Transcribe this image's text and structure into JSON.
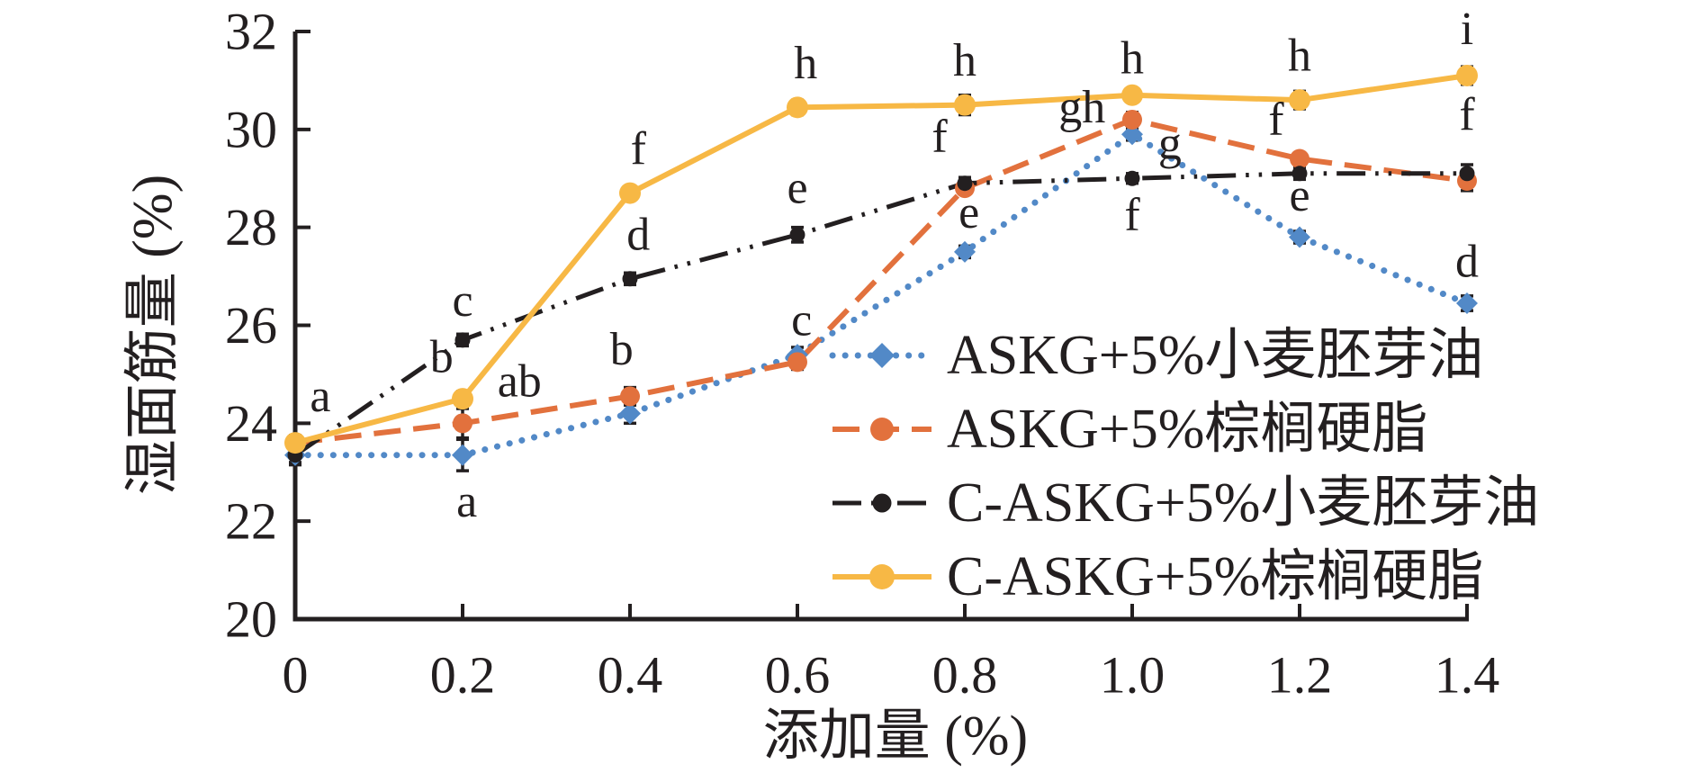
{
  "chart_data": {
    "type": "line",
    "title": "",
    "xlabel": "添加量 (%)",
    "ylabel": "湿面筋量 (%)",
    "xlim": [
      0,
      1.4
    ],
    "ylim": [
      20,
      32
    ],
    "grid": false,
    "legend_position": "center-right",
    "axis_color": "#231f20",
    "x": [
      0,
      0.2,
      0.4,
      0.6,
      0.8,
      1.0,
      1.2,
      1.4
    ],
    "x_tick_labels": [
      "0",
      "0.2",
      "0.4",
      "0.6",
      "0.8",
      "1.0",
      "1.2",
      "1.4"
    ],
    "y_ticks": [
      20,
      22,
      24,
      26,
      28,
      30,
      32
    ],
    "series": [
      {
        "name": "ASKG+5%小麦胚芽油",
        "color": "#5289c7",
        "line_style": "dotted",
        "marker": "diamond",
        "marker_size": 12,
        "values": [
          23.35,
          23.35,
          24.2,
          25.4,
          27.5,
          29.9,
          27.8,
          26.45
        ],
        "errors": [
          0.15,
          0.32,
          0.2,
          0.15,
          0.12,
          0.12,
          0.12,
          0.15
        ]
      },
      {
        "name": "ASKG+5%棕榈硬脂",
        "color": "#e2713d",
        "line_style": "dashed",
        "marker": "circle",
        "marker_size": 11,
        "values": [
          23.6,
          24.0,
          24.55,
          25.25,
          28.8,
          30.2,
          29.4,
          28.95
        ],
        "errors": [
          0.15,
          0.3,
          0.18,
          0.15,
          0.12,
          0.15,
          0.12,
          0.2
        ]
      },
      {
        "name": "C-ASKG+5%小麦胚芽油",
        "color": "#231f20",
        "line_style": "dashdotdot",
        "marker": "circle",
        "marker_size": 8.5,
        "values": [
          23.35,
          25.7,
          26.95,
          27.85,
          28.9,
          29.0,
          29.1,
          29.1
        ],
        "errors": [
          0.2,
          0.12,
          0.12,
          0.15,
          0.12,
          0.1,
          0.12,
          0.18
        ]
      },
      {
        "name": "C-ASKG+5%棕榈硬脂",
        "color": "#f7b845",
        "line_style": "solid",
        "marker": "circle",
        "marker_size": 12,
        "values": [
          23.6,
          24.5,
          28.7,
          30.45,
          30.5,
          30.7,
          30.6,
          31.1
        ],
        "errors": [
          0.15,
          0.15,
          0.12,
          0.15,
          0.2,
          0.12,
          0.18,
          0.18
        ]
      }
    ],
    "point_labels": [
      {
        "x": 0.03,
        "v": 24.55,
        "text": "a"
      },
      {
        "x": 0.175,
        "v": 25.35,
        "text": "b"
      },
      {
        "x": 0.2,
        "v": 26.5,
        "text": "c"
      },
      {
        "x": 0.268,
        "v": 24.85,
        "text": "ab"
      },
      {
        "x": 0.205,
        "v": 22.4,
        "text": "a"
      },
      {
        "x": 0.41,
        "v": 29.6,
        "text": "f"
      },
      {
        "x": 0.41,
        "v": 27.85,
        "text": "d"
      },
      {
        "x": 0.39,
        "v": 25.5,
        "text": "b"
      },
      {
        "x": 0.61,
        "v": 31.35,
        "text": "h"
      },
      {
        "x": 0.6,
        "v": 28.8,
        "text": "e"
      },
      {
        "x": 0.605,
        "v": 26.1,
        "text": "c"
      },
      {
        "x": 0.8,
        "v": 31.4,
        "text": "h"
      },
      {
        "x": 0.77,
        "v": 29.85,
        "text": "f"
      },
      {
        "x": 0.805,
        "v": 28.3,
        "text": "e"
      },
      {
        "x": 1.0,
        "v": 31.45,
        "text": "h"
      },
      {
        "x": 0.94,
        "v": 30.45,
        "text": "gh"
      },
      {
        "x": 1.045,
        "v": 29.7,
        "text": "g"
      },
      {
        "x": 1.0,
        "v": 28.25,
        "text": "f"
      },
      {
        "x": 1.2,
        "v": 31.5,
        "text": "h"
      },
      {
        "x": 1.172,
        "v": 30.2,
        "text": "f"
      },
      {
        "x": 1.2,
        "v": 28.65,
        "text": "e"
      },
      {
        "x": 1.4,
        "v": 32.05,
        "text": "i"
      },
      {
        "x": 1.4,
        "v": 30.3,
        "text": "f"
      },
      {
        "x": 1.4,
        "v": 27.3,
        "text": "d"
      }
    ]
  }
}
